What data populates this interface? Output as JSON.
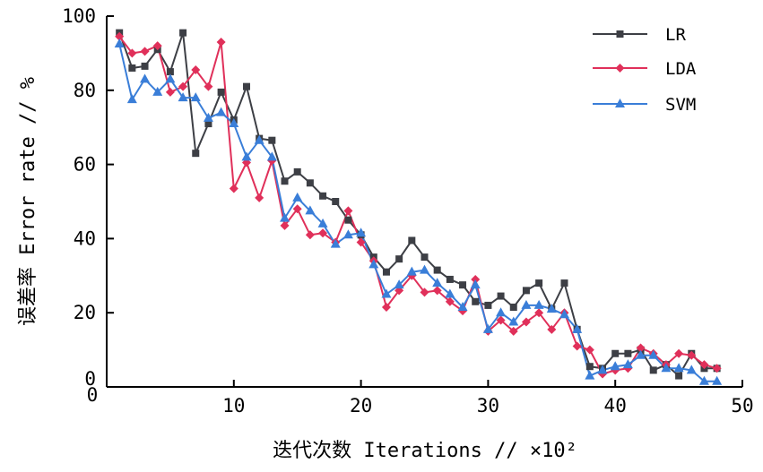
{
  "chart_data": {
    "type": "line",
    "xlabel": "迭代次数 Iterations",
    "xlabel_unit": "// ×10²",
    "ylabel": "误差率 Error rate // %",
    "xlim": [
      0,
      50
    ],
    "ylim": [
      0,
      100
    ],
    "xticks": [
      "10",
      "20",
      "30",
      "40",
      "50"
    ],
    "yticks": [
      "0",
      "20",
      "40",
      "60",
      "80",
      "100"
    ],
    "x0_label": "0",
    "grid": false,
    "legend_position": "top-right",
    "x": [
      1,
      2,
      3,
      4,
      5,
      6,
      7,
      8,
      9,
      10,
      11,
      12,
      13,
      14,
      15,
      16,
      17,
      18,
      19,
      20,
      21,
      22,
      23,
      24,
      25,
      26,
      27,
      28,
      29,
      30,
      31,
      32,
      33,
      34,
      35,
      36,
      37,
      38,
      39,
      40,
      41,
      42,
      43,
      44,
      45,
      46,
      47,
      48
    ],
    "series": [
      {
        "name": "LR",
        "color": "#3d3f45",
        "marker": "square",
        "values": [
          95.5,
          86,
          86.5,
          91,
          85,
          95.5,
          63,
          71,
          79.5,
          72,
          81,
          67,
          66.5,
          55.5,
          58,
          55,
          51.5,
          50,
          45,
          41,
          35,
          31,
          34.5,
          39.5,
          35,
          31.5,
          29,
          27.5,
          23,
          22,
          24.5,
          21.5,
          26,
          28,
          21,
          28,
          15.5,
          5.5,
          5,
          9,
          9,
          10,
          4.5,
          6,
          3,
          9,
          5,
          5
        ]
      },
      {
        "name": "LDA",
        "color": "#e0305a",
        "marker": "diamond",
        "values": [
          94.5,
          90,
          90.5,
          92,
          79.5,
          81,
          85.5,
          81,
          93,
          53.5,
          60.5,
          51,
          61,
          43.5,
          48,
          41,
          41.5,
          39,
          47.5,
          39,
          34,
          21.5,
          26,
          30,
          25.5,
          26,
          23,
          20.5,
          29,
          15,
          18,
          15,
          17.5,
          20,
          15.5,
          20,
          11,
          10,
          3.5,
          4.5,
          5,
          10.5,
          9,
          6,
          9,
          8.5,
          6,
          5
        ]
      },
      {
        "name": "SVM",
        "color": "#3a7ed8",
        "marker": "triangle",
        "values": [
          92.5,
          77.5,
          83,
          79.5,
          83,
          78,
          78,
          72.5,
          74,
          71,
          62,
          66.5,
          62,
          45.5,
          51,
          47.5,
          44,
          38.5,
          41,
          41.5,
          33,
          25,
          27.5,
          31,
          31.5,
          28,
          25,
          21.5,
          27.5,
          15.5,
          20,
          17.5,
          22,
          22,
          21,
          19.5,
          15.5,
          3,
          4.5,
          5.5,
          6,
          8.5,
          8.5,
          5,
          5,
          4.5,
          1.5,
          1.5
        ]
      }
    ]
  }
}
